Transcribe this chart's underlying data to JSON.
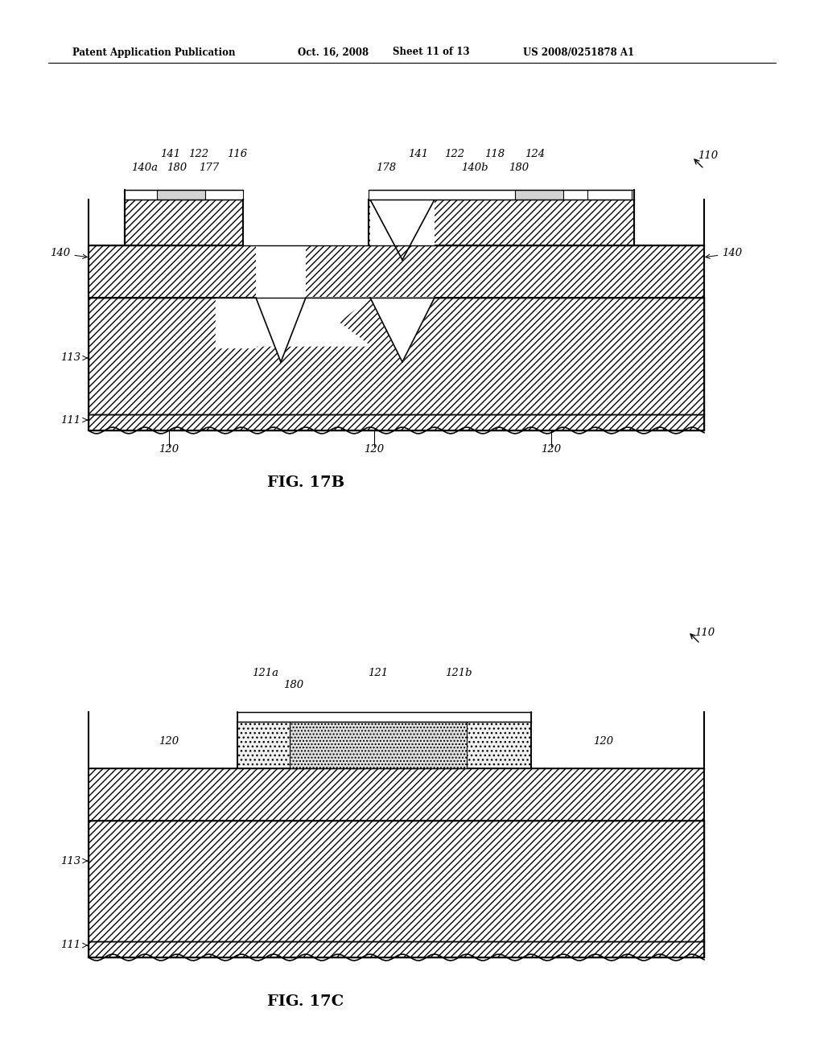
{
  "bg_color": "#ffffff",
  "header_text": "Patent Application Publication",
  "header_date": "Oct. 16, 2008",
  "header_sheet": "Sheet 11 of 13",
  "header_patent": "US 2008/0251878 A1",
  "fig17b_label": "FIG. 17B",
  "fig17c_label": "FIG. 17C",
  "hatch_dense": "////",
  "hatch_sparse": "////",
  "hatch_light": "////"
}
